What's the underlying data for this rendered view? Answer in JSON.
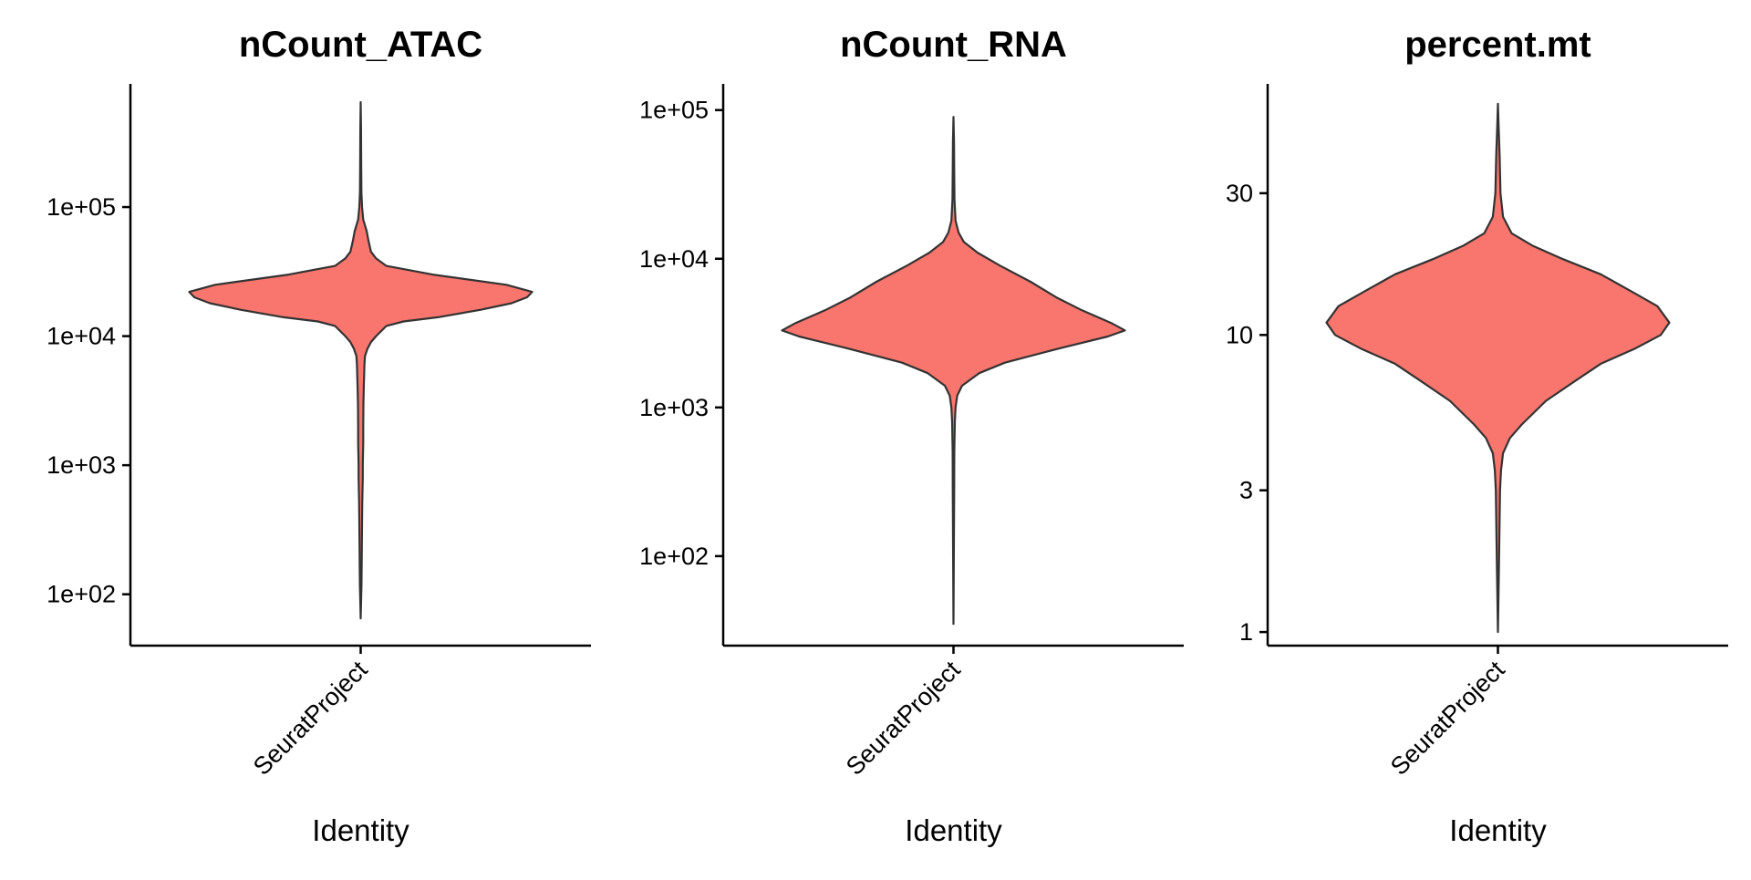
{
  "chart_data": [
    {
      "type": "violin",
      "title": "nCount_ATAC",
      "xlabel": "Identity",
      "ylabel": "",
      "categories": [
        "SeuratProject"
      ],
      "y_scale": "log10",
      "ylim": [
        40,
        900000
      ],
      "yticks": [
        {
          "value": 100,
          "label": "1e+02"
        },
        {
          "value": 1000,
          "label": "1e+03"
        },
        {
          "value": 10000,
          "label": "1e+04"
        },
        {
          "value": 100000,
          "label": "1e+05"
        }
      ],
      "fill_color": "#F8766D",
      "density": [
        [
          65,
          0
        ],
        [
          120,
          0.005
        ],
        [
          250,
          0.007
        ],
        [
          500,
          0.009
        ],
        [
          800,
          0.012
        ],
        [
          1000,
          0.012
        ],
        [
          1500,
          0.015
        ],
        [
          2000,
          0.015
        ],
        [
          3000,
          0.016
        ],
        [
          4000,
          0.018
        ],
        [
          5000,
          0.02
        ],
        [
          6000,
          0.022
        ],
        [
          7000,
          0.025
        ],
        [
          8000,
          0.04
        ],
        [
          9000,
          0.06
        ],
        [
          10000,
          0.09
        ],
        [
          12000,
          0.15
        ],
        [
          13000,
          0.25
        ],
        [
          14000,
          0.45
        ],
        [
          16000,
          0.7
        ],
        [
          18000,
          0.88
        ],
        [
          20000,
          0.97
        ],
        [
          22000,
          1.0
        ],
        [
          25000,
          0.85
        ],
        [
          30000,
          0.42
        ],
        [
          35000,
          0.15
        ],
        [
          40000,
          0.09
        ],
        [
          45000,
          0.06
        ],
        [
          55000,
          0.045
        ],
        [
          65000,
          0.035
        ],
        [
          80000,
          0.015
        ],
        [
          100000,
          0.008
        ],
        [
          130000,
          0.004
        ],
        [
          200000,
          0.003
        ],
        [
          400000,
          0.002
        ],
        [
          650000,
          0
        ]
      ]
    },
    {
      "type": "violin",
      "title": "nCount_RNA",
      "xlabel": "Identity",
      "ylabel": "",
      "categories": [
        "SeuratProject"
      ],
      "y_scale": "log10",
      "ylim": [
        25,
        150000
      ],
      "yticks": [
        {
          "value": 100,
          "label": "1e+02"
        },
        {
          "value": 1000,
          "label": "1e+03"
        },
        {
          "value": 10000,
          "label": "1e+04"
        },
        {
          "value": 100000,
          "label": "1e+05"
        }
      ],
      "fill_color": "#F8766D",
      "density": [
        [
          35,
          0
        ],
        [
          100,
          0.002
        ],
        [
          300,
          0.004
        ],
        [
          500,
          0.005
        ],
        [
          800,
          0.008
        ],
        [
          1000,
          0.012
        ],
        [
          1200,
          0.022
        ],
        [
          1400,
          0.05
        ],
        [
          1700,
          0.15
        ],
        [
          2000,
          0.3
        ],
        [
          2500,
          0.62
        ],
        [
          3000,
          0.9
        ],
        [
          3300,
          1.0
        ],
        [
          3700,
          0.92
        ],
        [
          4500,
          0.75
        ],
        [
          5500,
          0.6
        ],
        [
          7000,
          0.45
        ],
        [
          9000,
          0.27
        ],
        [
          11000,
          0.14
        ],
        [
          13000,
          0.06
        ],
        [
          15000,
          0.03
        ],
        [
          18000,
          0.012
        ],
        [
          25000,
          0.006
        ],
        [
          40000,
          0.004
        ],
        [
          60000,
          0.003
        ],
        [
          90000,
          0
        ]
      ]
    },
    {
      "type": "violin",
      "title": "percent.mt",
      "xlabel": "Identity",
      "ylabel": "",
      "categories": [
        "SeuratProject"
      ],
      "y_scale": "log10",
      "ylim": [
        0.9,
        70
      ],
      "yticks": [
        {
          "value": 1,
          "label": "1"
        },
        {
          "value": 3,
          "label": "3"
        },
        {
          "value": 10,
          "label": "10"
        },
        {
          "value": 30,
          "label": "30"
        }
      ],
      "fill_color": "#F8766D",
      "density": [
        [
          1,
          0
        ],
        [
          1.5,
          0.005
        ],
        [
          2,
          0.008
        ],
        [
          3,
          0.012
        ],
        [
          3.5,
          0.018
        ],
        [
          4,
          0.03
        ],
        [
          4.5,
          0.07
        ],
        [
          5,
          0.14
        ],
        [
          6,
          0.28
        ],
        [
          7,
          0.45
        ],
        [
          8,
          0.6
        ],
        [
          9,
          0.8
        ],
        [
          10,
          0.95
        ],
        [
          11,
          1.0
        ],
        [
          12.5,
          0.93
        ],
        [
          14,
          0.78
        ],
        [
          16,
          0.6
        ],
        [
          18,
          0.38
        ],
        [
          20,
          0.2
        ],
        [
          22,
          0.08
        ],
        [
          25,
          0.03
        ],
        [
          30,
          0.015
        ],
        [
          40,
          0.01
        ],
        [
          50,
          0.004
        ],
        [
          60,
          0
        ]
      ]
    }
  ]
}
